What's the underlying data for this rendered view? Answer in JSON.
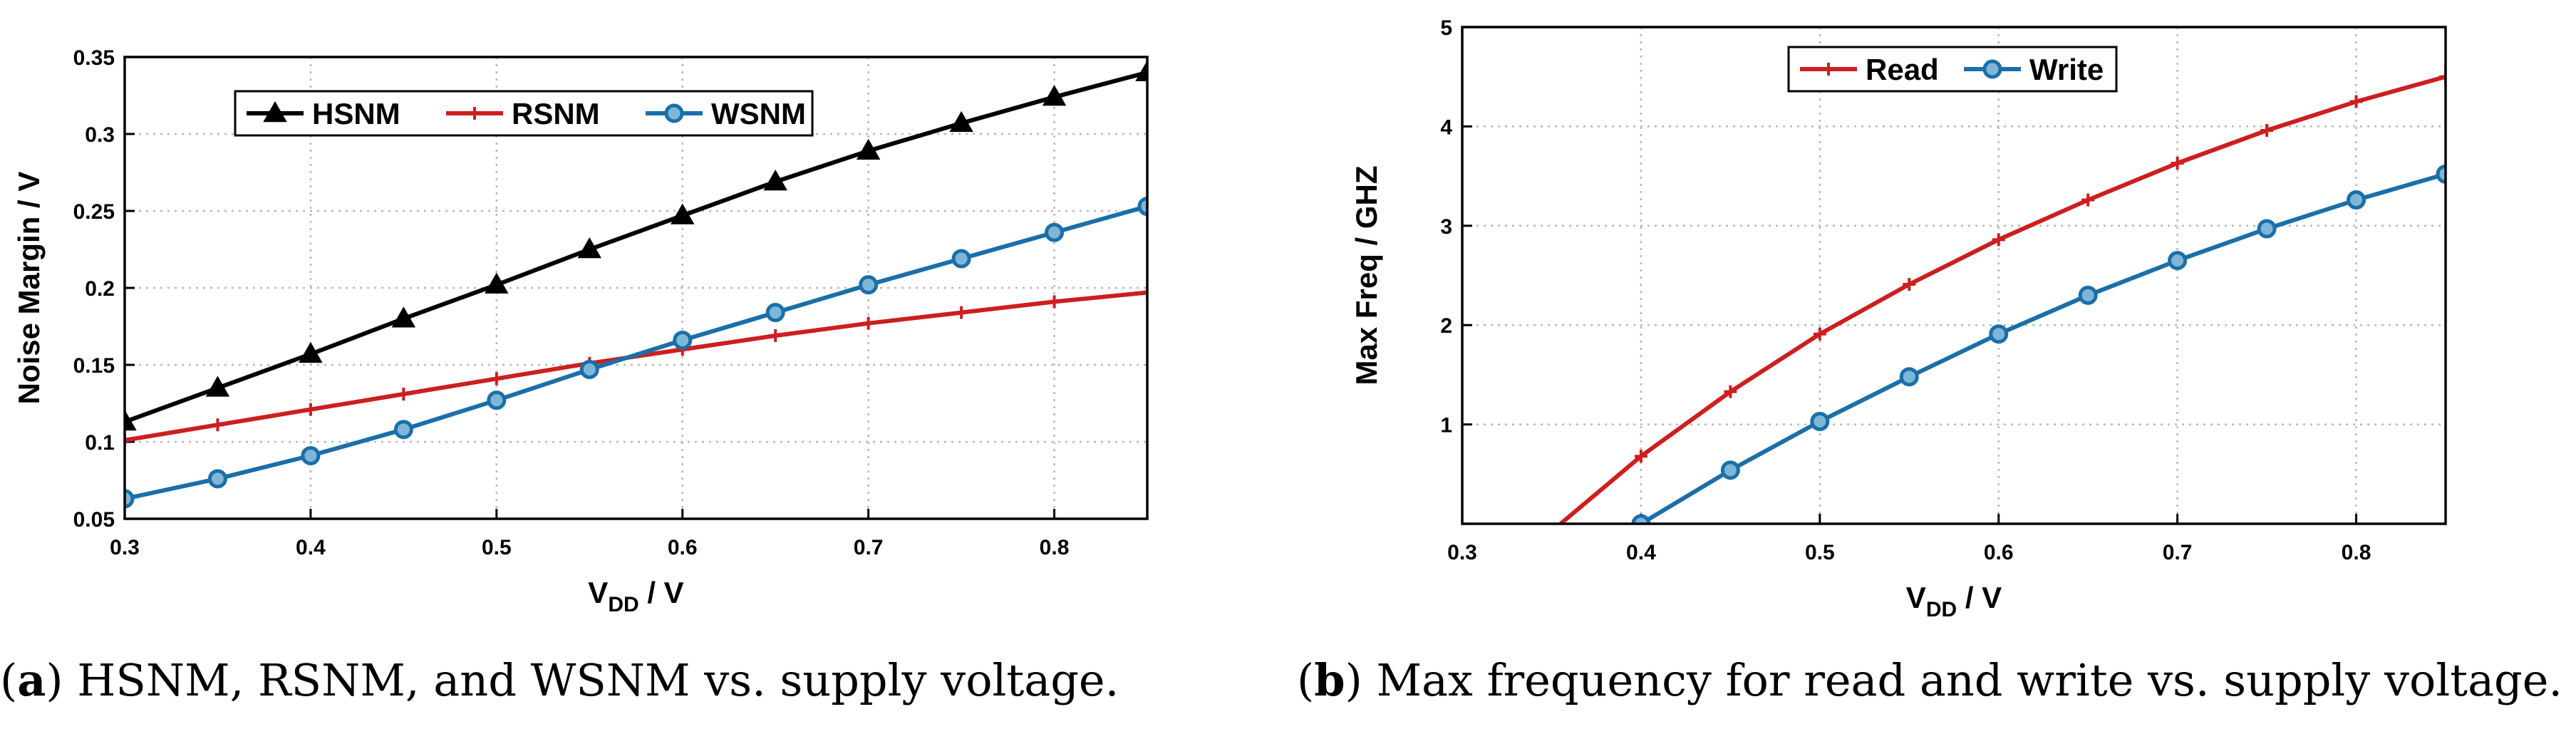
{
  "chart_data": [
    {
      "type": "line",
      "title": "",
      "xlabel": "V",
      "xlabel_sub": "DD",
      "xlabel_suffix": " / V",
      "ylabel": "Noise Margin / V",
      "xlim": [
        0.3,
        0.85
      ],
      "ylim": [
        0.05,
        0.35
      ],
      "xticks": [
        0.3,
        0.4,
        0.5,
        0.6,
        0.7,
        0.8
      ],
      "xtick_labels": [
        "0.3",
        "0.4",
        "0.5",
        "0.6",
        "0.7",
        "0.8"
      ],
      "yticks": [
        0.05,
        0.1,
        0.15,
        0.2,
        0.25,
        0.3,
        0.35
      ],
      "ytick_labels": [
        "0.05",
        "0.1",
        "0.15",
        "0.2",
        "0.25",
        "0.3",
        "0.35"
      ],
      "grid": true,
      "legend_position": "top-left",
      "legend_orientation": "horizontal",
      "series": [
        {
          "name": "HSNM",
          "color": "#000000",
          "marker": "triangle",
          "x": [
            0.3,
            0.35,
            0.4,
            0.45,
            0.5,
            0.55,
            0.6,
            0.65,
            0.7,
            0.75,
            0.8,
            0.85
          ],
          "y": [
            0.113,
            0.135,
            0.157,
            0.18,
            0.202,
            0.225,
            0.247,
            0.269,
            0.289,
            0.307,
            0.324,
            0.34
          ]
        },
        {
          "name": "RSNM",
          "color": "#cc1f1f",
          "marker": "plus",
          "x": [
            0.3,
            0.35,
            0.4,
            0.45,
            0.5,
            0.55,
            0.6,
            0.65,
            0.7,
            0.75,
            0.8,
            0.85
          ],
          "y": [
            0.101,
            0.111,
            0.121,
            0.131,
            0.141,
            0.151,
            0.16,
            0.169,
            0.177,
            0.184,
            0.191,
            0.197
          ]
        },
        {
          "name": "WSNM",
          "color": "#1a6fa8",
          "marker": "circle",
          "x": [
            0.3,
            0.35,
            0.4,
            0.45,
            0.5,
            0.55,
            0.6,
            0.65,
            0.7,
            0.75,
            0.8,
            0.85
          ],
          "y": [
            0.063,
            0.076,
            0.091,
            0.108,
            0.127,
            0.147,
            0.166,
            0.184,
            0.202,
            0.219,
            0.236,
            0.253
          ]
        }
      ]
    },
    {
      "type": "line",
      "title": "",
      "xlabel": "V",
      "xlabel_sub": "DD",
      "xlabel_suffix": " / V",
      "ylabel": "Max Freq / GHZ",
      "xlim": [
        0.3,
        0.85
      ],
      "ylim": [
        0,
        5
      ],
      "xticks": [
        0.3,
        0.4,
        0.5,
        0.6,
        0.7,
        0.8
      ],
      "xtick_labels": [
        "0.3",
        "0.4",
        "0.5",
        "0.6",
        "0.7",
        "0.8"
      ],
      "yticks": [
        1,
        2,
        3,
        4,
        5
      ],
      "ytick_labels": [
        "1",
        "2",
        "3",
        "4",
        "5"
      ],
      "grid": true,
      "legend_position": "top-center",
      "legend_orientation": "horizontal",
      "series": [
        {
          "name": "Read",
          "color": "#cc1f1f",
          "marker": "plus",
          "line_start_x": 0.355,
          "x": [
            0.4,
            0.45,
            0.5,
            0.55,
            0.6,
            0.65,
            0.7,
            0.75,
            0.8,
            0.85
          ],
          "y": [
            0.68,
            1.33,
            1.91,
            2.41,
            2.86,
            3.26,
            3.63,
            3.96,
            4.25,
            4.5
          ]
        },
        {
          "name": "Write",
          "color": "#1a6fa8",
          "marker": "circle",
          "x": [
            0.4,
            0.45,
            0.5,
            0.55,
            0.6,
            0.65,
            0.7,
            0.75,
            0.8,
            0.85
          ],
          "y": [
            0.0,
            0.54,
            1.03,
            1.48,
            1.91,
            2.3,
            2.65,
            2.97,
            3.26,
            3.52
          ]
        }
      ]
    }
  ],
  "captions": [
    {
      "label": "(a)",
      "label_open": "(",
      "label_letter": "a",
      "label_close": ")",
      "text": " HSNM, RSNM, and WSNM vs. supply voltage."
    },
    {
      "label": "(b)",
      "label_open": "(",
      "label_letter": "b",
      "label_close": ")",
      "text": " Max frequency for read and write vs. supply voltage."
    }
  ]
}
